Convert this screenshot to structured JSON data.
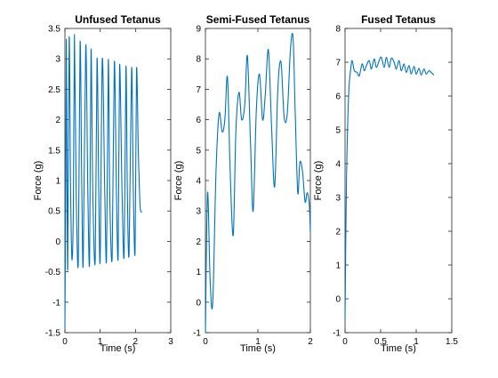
{
  "chart_data": [
    {
      "type": "line",
      "title": "Unfused Tetanus",
      "xlabel": "Time (s)",
      "ylabel": "Force (g)",
      "xlim": [
        0,
        3
      ],
      "ylim": [
        -1.5,
        3.5
      ],
      "xticks": [
        "0",
        "1",
        "2",
        "3"
      ],
      "yticks": [
        "-1.5",
        "-1",
        "-0.5",
        "0",
        "0.5",
        "1",
        "1.5",
        "2",
        "2.5",
        "3",
        "3.5"
      ],
      "line_color": "#0072BD",
      "series": [
        {
          "x": [
            0,
            0.02,
            0.04,
            0.06,
            0.08,
            0.12,
            0.16,
            0.2,
            0.24,
            0.27,
            0.32,
            0.38,
            0.43,
            0.48,
            0.52,
            0.59,
            0.65,
            0.7,
            0.74,
            0.79,
            0.86,
            0.91,
            0.96,
            1.0,
            1.06,
            1.13,
            1.18,
            1.23,
            1.27,
            1.34,
            1.4,
            1.46,
            1.51,
            1.55,
            1.62,
            1.68,
            1.73,
            1.77,
            1.82,
            1.89,
            1.94,
            1.99,
            2.03,
            2.08,
            2.13,
            2.18
          ],
          "y": [
            -1.4,
            0.5,
            3.32,
            1.0,
            -0.4,
            3.35,
            0.9,
            -0.3,
            0.6,
            3.4,
            0.8,
            -0.33,
            3.28,
            0.8,
            -0.33,
            3.22,
            0.8,
            -0.32,
            3.15,
            0.8,
            -0.3,
            3.0,
            0.8,
            -0.28,
            3.0,
            0.8,
            -0.27,
            2.98,
            0.8,
            -0.25,
            2.95,
            0.8,
            -0.23,
            2.9,
            0.8,
            -0.2,
            2.87,
            0.8,
            -0.18,
            2.85,
            0.8,
            -0.15,
            2.82,
            1.5,
            0.6,
            0.48
          ]
        }
      ]
    },
    {
      "type": "line",
      "title": "Semi-Fused Tetanus",
      "xlabel": "Time (s)",
      "ylabel": "Force (g)",
      "xlim": [
        0,
        2
      ],
      "ylim": [
        -1,
        9
      ],
      "xticks": [
        "0",
        "1",
        "2"
      ],
      "yticks": [
        "-1",
        "0",
        "1",
        "2",
        "3",
        "4",
        "5",
        "6",
        "7",
        "8",
        "9"
      ],
      "line_color": "#0072BD",
      "series": [
        {
          "x": [
            0,
            0.04,
            0.09,
            0.14,
            0.2,
            0.26,
            0.32,
            0.37,
            0.42,
            0.47,
            0.53,
            0.58,
            0.64,
            0.69,
            0.75,
            0.8,
            0.86,
            0.91,
            0.97,
            1.03,
            1.09,
            1.14,
            1.2,
            1.26,
            1.32,
            1.38,
            1.44,
            1.5,
            1.56,
            1.62,
            1.67,
            1.71,
            1.76,
            1.8,
            1.85,
            1.9,
            1.94,
            1.98,
            2.0
          ],
          "y": [
            -1.0,
            3.6,
            0.7,
            0.0,
            4.2,
            6.2,
            5.6,
            6.0,
            7.4,
            4.4,
            2.2,
            5.6,
            6.9,
            6.0,
            6.5,
            8.1,
            5.2,
            3.0,
            6.3,
            7.5,
            6.0,
            6.8,
            8.3,
            5.8,
            3.8,
            7.0,
            7.9,
            6.1,
            6.2,
            8.3,
            8.7,
            6.3,
            3.6,
            4.6,
            4.3,
            3.3,
            3.6,
            3.2,
            2.3
          ]
        }
      ]
    },
    {
      "type": "line",
      "title": "Fused Tetanus",
      "xlabel": "Time (s)",
      "ylabel": "Force (g)",
      "xlim": [
        0,
        1.5
      ],
      "ylim": [
        -1,
        8
      ],
      "xticks": [
        "0",
        "0.5",
        "1",
        "1.5"
      ],
      "yticks": [
        "-1",
        "0",
        "1",
        "2",
        "3",
        "4",
        "5",
        "6",
        "7",
        "8"
      ],
      "line_color": "#0072BD",
      "series": [
        {
          "x": [
            0,
            0.02,
            0.05,
            0.08,
            0.1,
            0.13,
            0.17,
            0.2,
            0.24,
            0.27,
            0.3,
            0.34,
            0.37,
            0.41,
            0.44,
            0.48,
            0.51,
            0.55,
            0.58,
            0.62,
            0.65,
            0.69,
            0.72,
            0.76,
            0.79,
            0.83,
            0.86,
            0.9,
            0.93,
            0.97,
            1.0,
            1.04,
            1.07,
            1.11,
            1.14,
            1.18,
            1.21,
            1.25
          ],
          "y": [
            -0.6,
            3.5,
            6.0,
            6.8,
            7.05,
            6.75,
            6.7,
            6.6,
            6.95,
            6.75,
            6.9,
            7.05,
            6.8,
            7.1,
            6.85,
            7.05,
            7.15,
            6.85,
            7.15,
            6.85,
            7.12,
            7.0,
            6.8,
            7.05,
            6.75,
            6.95,
            6.7,
            6.9,
            6.65,
            6.88,
            6.65,
            6.82,
            6.62,
            6.8,
            6.65,
            6.75,
            6.7,
            6.62
          ]
        }
      ]
    }
  ]
}
